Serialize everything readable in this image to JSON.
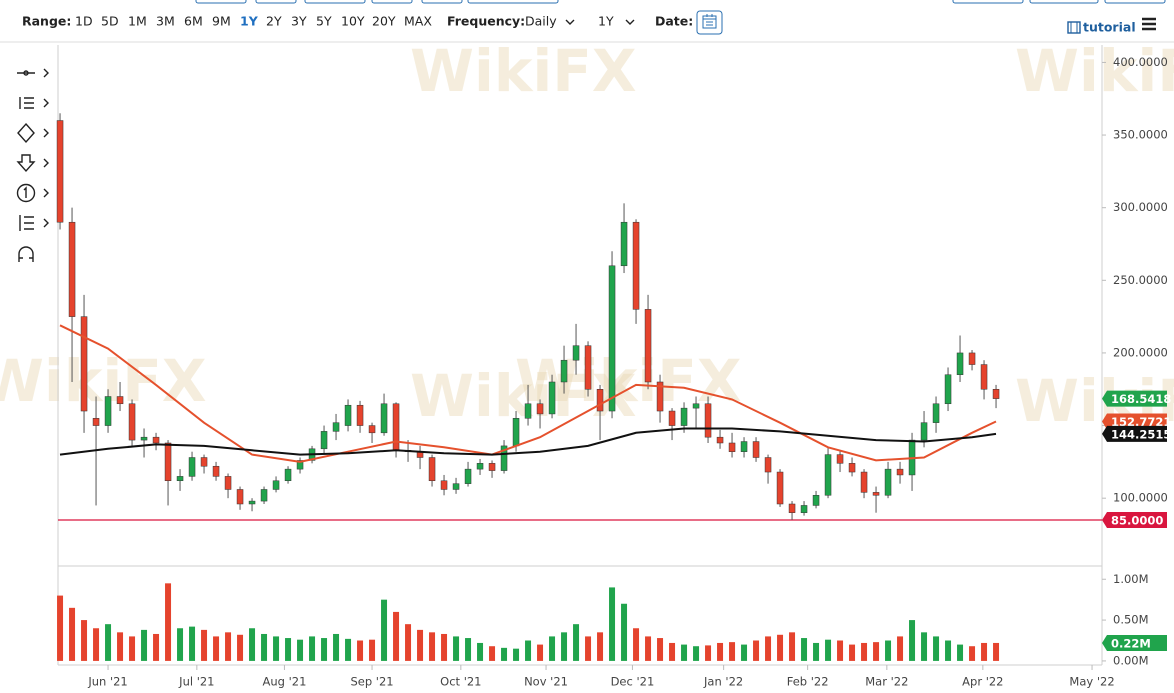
{
  "toolbar": {
    "range_label": "Range:",
    "range_options": [
      "1D",
      "5D",
      "1M",
      "3M",
      "6M",
      "9M",
      "1Y",
      "2Y",
      "3Y",
      "5Y",
      "10Y",
      "20Y",
      "MAX"
    ],
    "frequency_label": "Frequency:",
    "frequency": "Daily",
    "interval": "1Y",
    "date_label": "Date:",
    "tutorial": "tutorial"
  },
  "watermark": "WikiFX",
  "chart_data": {
    "type": "candlestick",
    "ohlc": {
      "open": [
        360,
        290,
        225,
        155,
        150,
        170,
        165,
        140,
        142,
        138,
        112,
        115,
        128,
        122,
        115,
        106,
        96,
        98,
        106,
        112,
        120,
        126,
        134,
        146,
        150,
        164,
        150,
        145,
        165,
        133,
        132,
        128,
        112,
        106,
        110,
        120,
        124,
        119,
        136,
        155,
        165,
        158,
        180,
        195,
        205,
        175,
        160,
        260,
        290,
        230,
        180,
        160,
        150,
        162,
        165,
        142,
        138,
        132,
        139,
        128,
        118,
        96,
        90,
        95,
        102,
        130,
        124,
        118,
        104,
        102,
        120,
        116,
        140,
        152,
        165,
        185,
        200,
        192,
        175
      ],
      "high": [
        365,
        300,
        240,
        170,
        175,
        180,
        168,
        148,
        145,
        140,
        120,
        132,
        130,
        125,
        117,
        108,
        100,
        108,
        115,
        122,
        128,
        136,
        150,
        158,
        168,
        167,
        152,
        172,
        166,
        140,
        136,
        130,
        116,
        114,
        125,
        127,
        126,
        140,
        160,
        178,
        168,
        185,
        205,
        220,
        208,
        178,
        270,
        303,
        292,
        240,
        185,
        162,
        166,
        170,
        170,
        147,
        145,
        142,
        142,
        130,
        120,
        98,
        98,
        105,
        135,
        133,
        128,
        120,
        108,
        125,
        125,
        145,
        160,
        170,
        190,
        212,
        202,
        195,
        178
      ],
      "low": [
        285,
        180,
        145,
        95,
        145,
        160,
        135,
        128,
        133,
        95,
        105,
        112,
        117,
        112,
        100,
        92,
        91,
        96,
        104,
        110,
        117,
        124,
        130,
        140,
        146,
        145,
        138,
        143,
        128,
        125,
        120,
        108,
        102,
        103,
        108,
        116,
        114,
        117,
        132,
        150,
        148,
        155,
        172,
        185,
        170,
        140,
        155,
        255,
        220,
        175,
        152,
        140,
        145,
        148,
        138,
        134,
        128,
        128,
        125,
        110,
        94,
        85,
        88,
        93,
        100,
        118,
        115,
        100,
        90,
        100,
        110,
        105,
        135,
        145,
        160,
        180,
        188,
        168,
        162
      ],
      "close": [
        290,
        225,
        160,
        150,
        170,
        165,
        140,
        142,
        138,
        112,
        115,
        128,
        122,
        115,
        106,
        96,
        98,
        106,
        112,
        120,
        126,
        134,
        146,
        152,
        164,
        150,
        145,
        165,
        133,
        132,
        128,
        112,
        106,
        110,
        120,
        124,
        119,
        136,
        155,
        165,
        158,
        180,
        195,
        205,
        175,
        160,
        260,
        290,
        230,
        180,
        160,
        150,
        162,
        165,
        142,
        138,
        132,
        139,
        128,
        118,
        96,
        90,
        95,
        102,
        130,
        124,
        118,
        104,
        102,
        120,
        116,
        140,
        152,
        165,
        185,
        200,
        192,
        175,
        168.5418
      ]
    },
    "up_color": "#20a44c",
    "down_color": "#e5432d",
    "moving_averages": [
      {
        "color": "#e5512d",
        "x": [
          0,
          4,
          8,
          12,
          16,
          20,
          24,
          28,
          32,
          36,
          40,
          44,
          48,
          52,
          56,
          60,
          64,
          68,
          72,
          76,
          78
        ],
        "values": [
          219,
          203,
          178,
          152,
          130,
          125,
          132,
          139,
          135,
          130,
          142,
          160,
          178,
          176,
          168,
          152,
          135,
          126,
          128,
          145,
          152.7721
        ]
      },
      {
        "color": "#111111",
        "x": [
          0,
          4,
          8,
          12,
          16,
          20,
          24,
          28,
          32,
          36,
          40,
          44,
          48,
          52,
          56,
          60,
          64,
          68,
          72,
          76,
          78
        ],
        "values": [
          130,
          134,
          137,
          136,
          133,
          130,
          131,
          133,
          131,
          130,
          132,
          136,
          145,
          148,
          148,
          146,
          143,
          140,
          139,
          142,
          144.2515
        ]
      }
    ],
    "horizontal_lines": [
      {
        "value": 85,
        "label": "85.0000",
        "color": "#d9163f"
      }
    ],
    "ylim": [
      54,
      412
    ],
    "yticks": [
      {
        "value": 100,
        "label": "100.0000"
      },
      {
        "value": 150,
        "label": "150.0000"
      },
      {
        "value": 200,
        "label": "200.0000"
      },
      {
        "value": 250,
        "label": "250.0000"
      },
      {
        "value": 300,
        "label": "300.0000"
      },
      {
        "value": 350,
        "label": "350.0000"
      },
      {
        "value": 400,
        "label": "400.0000"
      }
    ],
    "xlim": [
      -0.17,
      86.83
    ],
    "xticks": [
      {
        "value": 4,
        "label": "Jun '21"
      },
      {
        "value": 11.4,
        "label": "Jul '21"
      },
      {
        "value": 18.7,
        "label": "Aug '21"
      },
      {
        "value": 26,
        "label": "Sep '21"
      },
      {
        "value": 33.4,
        "label": "Oct '21"
      },
      {
        "value": 40.5,
        "label": "Nov '21"
      },
      {
        "value": 47.7,
        "label": "Dec '21"
      },
      {
        "value": 55.3,
        "label": "Jan '22"
      },
      {
        "value": 62.3,
        "label": "Feb '22"
      },
      {
        "value": 68.9,
        "label": "Mar '22"
      },
      {
        "value": 76.9,
        "label": "Apr '22"
      },
      {
        "value": 86,
        "label": "May '22"
      }
    ],
    "volume": {
      "values": [
        800000,
        650000,
        500000,
        400000,
        450000,
        350000,
        300000,
        380000,
        330000,
        950000,
        400000,
        420000,
        380000,
        300000,
        350000,
        320000,
        400000,
        330000,
        300000,
        280000,
        260000,
        300000,
        280000,
        330000,
        270000,
        250000,
        260000,
        750000,
        600000,
        450000,
        380000,
        350000,
        330000,
        300000,
        280000,
        220000,
        180000,
        160000,
        150000,
        250000,
        200000,
        300000,
        350000,
        450000,
        300000,
        350000,
        900000,
        700000,
        400000,
        300000,
        280000,
        220000,
        200000,
        180000,
        190000,
        220000,
        230000,
        200000,
        250000,
        300000,
        320000,
        350000,
        280000,
        220000,
        260000,
        250000,
        200000,
        220000,
        230000,
        250000,
        300000,
        500000,
        350000,
        300000,
        250000,
        200000,
        180000,
        220000,
        220000
      ],
      "latest_label": "0.22M",
      "ylim": [
        -50000,
        1150000
      ],
      "yticks": [
        {
          "value": 0,
          "label": "0.00M"
        },
        {
          "value": 500000,
          "label": "0.50M"
        },
        {
          "value": 1000000,
          "label": "1.00M"
        }
      ]
    }
  }
}
